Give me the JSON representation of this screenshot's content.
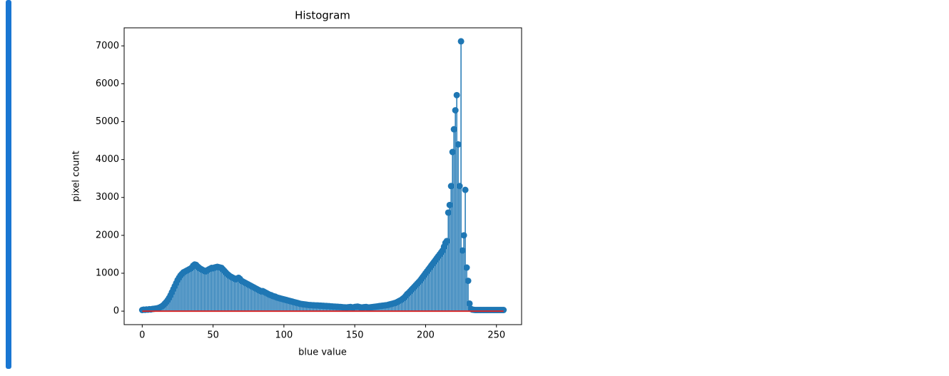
{
  "chart_data": {
    "type": "stem",
    "title": "Histogram",
    "xlabel": "blue value",
    "ylabel": "pixel count",
    "color": "#1f77b4",
    "baseline_color": "#d62728",
    "x": [
      0,
      1,
      2,
      3,
      4,
      5,
      6,
      7,
      8,
      9,
      10,
      11,
      12,
      13,
      14,
      15,
      16,
      17,
      18,
      19,
      20,
      21,
      22,
      23,
      24,
      25,
      26,
      27,
      28,
      29,
      30,
      31,
      32,
      33,
      34,
      35,
      36,
      37,
      38,
      39,
      40,
      41,
      42,
      43,
      44,
      45,
      46,
      47,
      48,
      49,
      50,
      51,
      52,
      53,
      54,
      55,
      56,
      57,
      58,
      59,
      60,
      61,
      62,
      63,
      64,
      65,
      66,
      67,
      68,
      69,
      70,
      71,
      72,
      73,
      74,
      75,
      76,
      77,
      78,
      79,
      80,
      81,
      82,
      83,
      84,
      85,
      86,
      87,
      88,
      89,
      90,
      91,
      92,
      93,
      94,
      95,
      96,
      97,
      98,
      99,
      100,
      101,
      102,
      103,
      104,
      105,
      106,
      107,
      108,
      109,
      110,
      111,
      112,
      113,
      114,
      115,
      116,
      117,
      118,
      119,
      120,
      121,
      122,
      123,
      124,
      125,
      126,
      127,
      128,
      129,
      130,
      131,
      132,
      133,
      134,
      135,
      136,
      137,
      138,
      139,
      140,
      141,
      142,
      143,
      144,
      145,
      146,
      147,
      148,
      149,
      150,
      151,
      152,
      153,
      154,
      155,
      156,
      157,
      158,
      159,
      160,
      161,
      162,
      163,
      164,
      165,
      166,
      167,
      168,
      169,
      170,
      171,
      172,
      173,
      174,
      175,
      176,
      177,
      178,
      179,
      180,
      181,
      182,
      183,
      184,
      185,
      186,
      187,
      188,
      189,
      190,
      191,
      192,
      193,
      194,
      195,
      196,
      197,
      198,
      199,
      200,
      201,
      202,
      203,
      204,
      205,
      206,
      207,
      208,
      209,
      210,
      211,
      212,
      213,
      214,
      215,
      216,
      217,
      218,
      219,
      220,
      221,
      222,
      223,
      224,
      225,
      226,
      227,
      228,
      229,
      230,
      231,
      232,
      233,
      234,
      235,
      236,
      237,
      238,
      239,
      240,
      241,
      242,
      243,
      244,
      245,
      246,
      247,
      248,
      249,
      250,
      251,
      252,
      253,
      254,
      255
    ],
    "values": [
      30,
      40,
      35,
      45,
      40,
      50,
      45,
      55,
      60,
      65,
      70,
      80,
      90,
      110,
      130,
      160,
      200,
      240,
      290,
      350,
      420,
      500,
      580,
      660,
      740,
      820,
      880,
      940,
      980,
      1020,
      1040,
      1060,
      1080,
      1100,
      1120,
      1150,
      1200,
      1230,
      1220,
      1180,
      1150,
      1120,
      1100,
      1080,
      1060,
      1050,
      1080,
      1100,
      1120,
      1140,
      1130,
      1150,
      1160,
      1170,
      1160,
      1150,
      1140,
      1100,
      1060,
      1020,
      980,
      950,
      920,
      900,
      880,
      860,
      840,
      860,
      880,
      850,
      800,
      780,
      760,
      740,
      720,
      700,
      680,
      660,
      640,
      620,
      600,
      580,
      560,
      540,
      520,
      530,
      510,
      490,
      470,
      450,
      430,
      420,
      400,
      390,
      380,
      360,
      350,
      340,
      330,
      320,
      310,
      300,
      290,
      280,
      270,
      260,
      250,
      240,
      230,
      220,
      210,
      200,
      190,
      185,
      180,
      175,
      170,
      165,
      160,
      160,
      155,
      155,
      150,
      150,
      150,
      145,
      145,
      140,
      140,
      135,
      135,
      130,
      130,
      125,
      125,
      120,
      120,
      115,
      115,
      110,
      110,
      105,
      100,
      100,
      95,
      100,
      105,
      110,
      100,
      95,
      110,
      115,
      120,
      110,
      100,
      95,
      100,
      105,
      110,
      100,
      95,
      100,
      105,
      110,
      115,
      120,
      125,
      130,
      135,
      140,
      145,
      150,
      155,
      160,
      170,
      180,
      190,
      200,
      210,
      220,
      240,
      260,
      280,
      300,
      330,
      360,
      400,
      450,
      480,
      520,
      560,
      600,
      640,
      680,
      720,
      760,
      800,
      850,
      900,
      950,
      1000,
      1050,
      1100,
      1150,
      1200,
      1250,
      1300,
      1350,
      1400,
      1450,
      1500,
      1550,
      1600,
      1700,
      1800,
      1850,
      2600,
      2800,
      3300,
      4200,
      4800,
      5300,
      5700,
      4400,
      3300,
      7120,
      1600,
      2000,
      3200,
      1150,
      800,
      200,
      60,
      40,
      35,
      30,
      30,
      30,
      30,
      30,
      30,
      30,
      30,
      30,
      30,
      30,
      30,
      30,
      30,
      30,
      30,
      30,
      30,
      30,
      30,
      30
    ],
    "xlim": [
      -12.75,
      267.75
    ],
    "xticks": [
      0,
      50,
      100,
      150,
      200,
      250
    ],
    "ylim": [
      -356,
      7476
    ],
    "yticks": [
      0,
      1000,
      2000,
      3000,
      4000,
      5000,
      6000,
      7000
    ]
  }
}
